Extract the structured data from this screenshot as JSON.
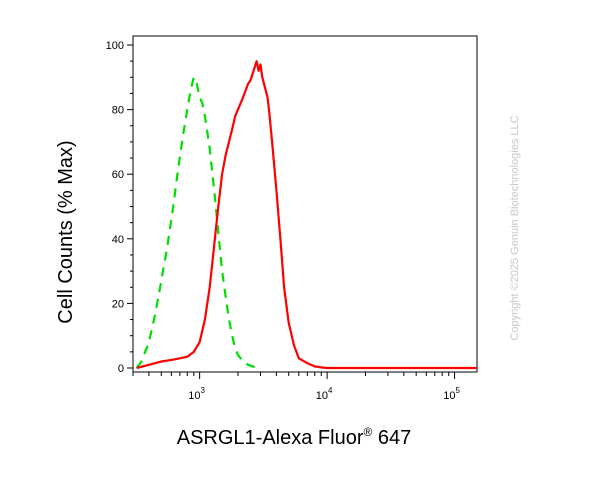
{
  "chart_data": {
    "type": "line",
    "title": "",
    "xlabel": "ASRGL1-Alexa Fluor® 647",
    "xlabel_main": "ASRGL1-Alexa Fluor",
    "xlabel_sup": "®",
    "xlabel_tail": " 647",
    "ylabel": "Cell Counts (% Max)",
    "xscale": "log",
    "xlim": [
      300,
      150000
    ],
    "ylim": [
      0,
      100
    ],
    "yticks": [
      0,
      20,
      40,
      60,
      80,
      100
    ],
    "ytick_labels": [
      "0",
      "20",
      "40",
      "60",
      "80",
      "100"
    ],
    "xticks": [
      1000,
      10000,
      100000
    ],
    "xtick_labels": [
      {
        "base": "10",
        "exp": "3"
      },
      {
        "base": "10",
        "exp": "4"
      },
      {
        "base": "10",
        "exp": "5"
      }
    ],
    "grid": false,
    "legend": "none",
    "series": [
      {
        "color": "#00dd00",
        "dash": "dashed",
        "x": [
          320,
          350,
          400,
          450,
          500,
          560,
          620,
          680,
          740,
          800,
          850,
          900,
          950,
          1000,
          1050,
          1100,
          1200,
          1300,
          1400,
          1500,
          1600,
          1700,
          1800,
          1900,
          2000,
          2200,
          2400,
          2600,
          2800,
          3000
        ],
        "y": [
          0,
          2,
          8,
          17,
          27,
          38,
          50,
          62,
          72,
          80,
          86,
          90,
          88,
          84,
          82,
          78,
          68,
          55,
          42,
          30,
          22,
          15,
          10,
          6,
          4,
          2,
          1,
          0.5,
          0.2,
          0
        ]
      },
      {
        "color": "#ff0000",
        "dash": "solid",
        "x": [
          320,
          400,
          500,
          600,
          700,
          800,
          900,
          1000,
          1100,
          1200,
          1300,
          1400,
          1500,
          1600,
          1700,
          1800,
          1900,
          2000,
          2100,
          2200,
          2300,
          2400,
          2500,
          2600,
          2700,
          2800,
          2900,
          3000,
          3100,
          3200,
          3300,
          3400,
          3500,
          3700,
          4000,
          4300,
          4600,
          5000,
          5500,
          6000,
          7000,
          8000,
          9000,
          10000,
          20000,
          50000,
          150000
        ],
        "y": [
          0,
          1,
          2,
          2.5,
          3,
          3.5,
          5,
          8,
          15,
          25,
          38,
          50,
          60,
          66,
          70,
          74,
          78,
          80,
          82,
          84,
          86,
          88,
          89,
          91,
          93,
          95,
          92,
          94,
          90,
          88,
          86,
          84,
          80,
          70,
          55,
          40,
          25,
          14,
          7,
          3,
          1.5,
          0.5,
          0.2,
          0,
          0,
          0,
          0
        ]
      }
    ]
  },
  "watermark": "Copyright ©2025 Genuin Biotechnologies LLC"
}
